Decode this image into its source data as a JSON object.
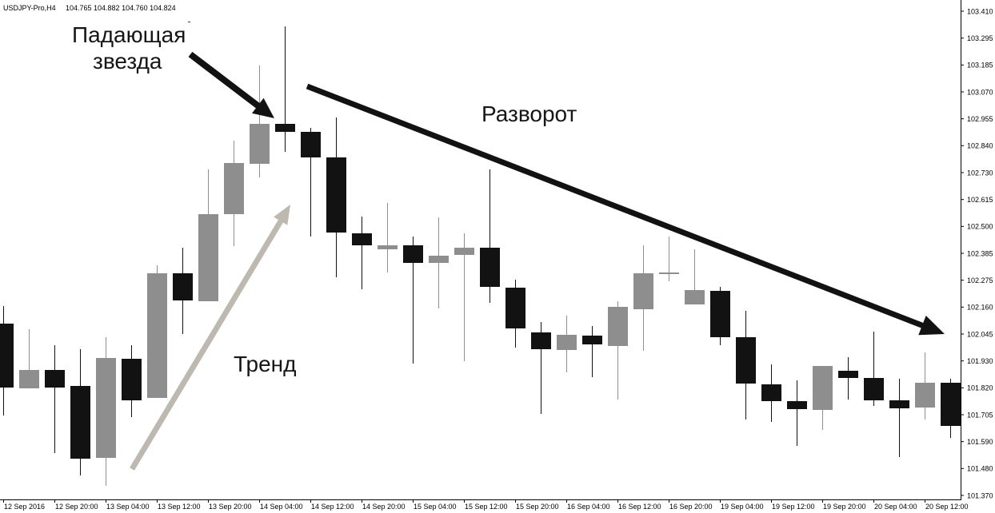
{
  "chart_data": {
    "type": "bar",
    "bar_style": "candlestick",
    "title": "USDJPY-Pro,H4",
    "title_quote": "104.765 104.882 104.760 104.824",
    "y_axis_position": "right",
    "grid": false,
    "y_tick_labels": [
      "103.410",
      "103.295",
      "103.185",
      "103.070",
      "102.955",
      "102.840",
      "102.730",
      "102.615",
      "102.500",
      "102.385",
      "102.275",
      "102.160",
      "102.045",
      "101.930",
      "101.820",
      "101.705",
      "101.590",
      "101.480",
      "101.370"
    ],
    "x_tick_labels": [
      "12 Sep 2016",
      "12 Sep 20:00",
      "13 Sep 04:00",
      "13 Sep 12:00",
      "13 Sep 20:00",
      "14 Sep 04:00",
      "14 Sep 12:00",
      "14 Sep 20:00",
      "15 Sep 04:00",
      "15 Sep 12:00",
      "15 Sep 20:00",
      "16 Sep 04:00",
      "16 Sep 12:00",
      "16 Sep 20:00",
      "19 Sep 04:00",
      "19 Sep 12:00",
      "19 Sep 20:00",
      "20 Sep 04:00",
      "20 Sep 12:00"
    ],
    "candles": [
      {
        "open": 102.094,
        "high": 102.168,
        "low": 101.707,
        "close": 101.825
      },
      {
        "open": 101.821,
        "high": 102.07,
        "low": 101.821,
        "close": 101.899
      },
      {
        "open": 101.899,
        "high": 102.003,
        "low": 101.548,
        "close": 101.825
      },
      {
        "open": 101.831,
        "high": 101.986,
        "low": 101.454,
        "close": 101.525
      },
      {
        "open": 101.528,
        "high": 102.037,
        "low": 101.41,
        "close": 101.949
      },
      {
        "open": 101.946,
        "high": 102.003,
        "low": 101.7,
        "close": 101.771
      },
      {
        "open": 101.781,
        "high": 102.34,
        "low": 101.781,
        "close": 102.306
      },
      {
        "open": 102.306,
        "high": 102.414,
        "low": 102.05,
        "close": 102.191
      },
      {
        "open": 102.188,
        "high": 102.744,
        "low": 102.188,
        "close": 102.555
      },
      {
        "open": 102.555,
        "high": 102.865,
        "low": 102.42,
        "close": 102.77
      },
      {
        "open": 102.767,
        "high": 103.181,
        "low": 102.71,
        "close": 102.935
      },
      {
        "open": 102.935,
        "high": 103.346,
        "low": 102.818,
        "close": 102.902
      },
      {
        "open": 102.902,
        "high": 102.919,
        "low": 102.461,
        "close": 102.794
      },
      {
        "open": 102.794,
        "high": 102.962,
        "low": 102.289,
        "close": 102.478
      },
      {
        "open": 102.474,
        "high": 102.545,
        "low": 102.239,
        "close": 102.424
      },
      {
        "open": 102.407,
        "high": 102.602,
        "low": 102.309,
        "close": 102.424
      },
      {
        "open": 102.424,
        "high": 102.461,
        "low": 101.926,
        "close": 102.35
      },
      {
        "open": 102.35,
        "high": 102.542,
        "low": 102.158,
        "close": 102.38
      },
      {
        "open": 102.383,
        "high": 102.474,
        "low": 101.936,
        "close": 102.414
      },
      {
        "open": 102.414,
        "high": 102.744,
        "low": 102.181,
        "close": 102.249
      },
      {
        "open": 102.245,
        "high": 102.279,
        "low": 101.993,
        "close": 102.074
      },
      {
        "open": 102.057,
        "high": 102.101,
        "low": 101.713,
        "close": 101.986
      },
      {
        "open": 101.983,
        "high": 102.127,
        "low": 101.888,
        "close": 102.047
      },
      {
        "open": 102.043,
        "high": 102.084,
        "low": 101.868,
        "close": 102.006
      },
      {
        "open": 102.0,
        "high": 102.188,
        "low": 101.774,
        "close": 102.164
      },
      {
        "open": 102.154,
        "high": 102.424,
        "low": 101.979,
        "close": 102.306
      },
      {
        "open": 102.303,
        "high": 102.461,
        "low": 102.272,
        "close": 102.309
      },
      {
        "open": 102.175,
        "high": 102.407,
        "low": 102.175,
        "close": 102.235
      },
      {
        "open": 102.232,
        "high": 102.249,
        "low": 102.003,
        "close": 102.037
      },
      {
        "open": 102.037,
        "high": 102.148,
        "low": 101.69,
        "close": 101.841
      },
      {
        "open": 101.838,
        "high": 101.922,
        "low": 101.68,
        "close": 101.767
      },
      {
        "open": 101.767,
        "high": 101.855,
        "low": 101.579,
        "close": 101.734
      },
      {
        "open": 101.73,
        "high": 101.915,
        "low": 101.646,
        "close": 101.915
      },
      {
        "open": 101.895,
        "high": 101.952,
        "low": 101.774,
        "close": 101.865
      },
      {
        "open": 101.865,
        "high": 102.06,
        "low": 101.747,
        "close": 101.771
      },
      {
        "open": 101.771,
        "high": 101.862,
        "low": 101.532,
        "close": 101.737
      },
      {
        "open": 101.74,
        "high": 101.973,
        "low": 101.69,
        "close": 101.845
      },
      {
        "open": 101.845,
        "high": 101.862,
        "low": 101.612,
        "close": 101.663
      }
    ],
    "annotations": {
      "shooting_star": [
        "Падающая",
        "звезда"
      ],
      "reversal": "Разворот",
      "trend": "Тренд"
    }
  },
  "colors": {
    "bullish": "#8e8e8e",
    "bearish": "#121212",
    "arrow": "#121212",
    "trend_arrow": "#bdb8b0",
    "axis": "#000000"
  }
}
